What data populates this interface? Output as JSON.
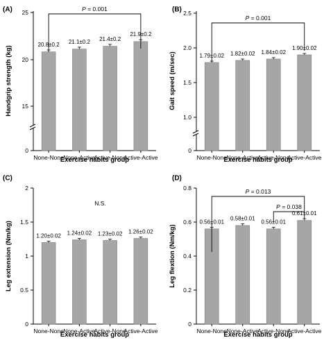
{
  "chart_data": [
    {
      "panel": "(A)",
      "type": "bar",
      "categories": [
        "None-None",
        "None-Active",
        "Active-None",
        "Active-Active"
      ],
      "values": [
        20.8,
        21.1,
        21.4,
        21.9
      ],
      "errors": [
        0.2,
        0.2,
        0.2,
        0.2
      ],
      "data_labels": [
        "20.8±0.2",
        "21.1±0.2",
        "21.4±0.2",
        "21.9±0.2"
      ],
      "xlabel": "Exercise habits group",
      "ylabel": "Handgrip strength (kg)",
      "yticks": [
        "0",
        "15",
        "20",
        "25"
      ],
      "ylim": [
        0,
        25
      ],
      "axis_break": true,
      "significance": [
        {
          "from": 0,
          "to": 3,
          "label": "P = 0.001"
        }
      ]
    },
    {
      "panel": "(B)",
      "type": "bar",
      "categories": [
        "None-None",
        "None-Active",
        "Active-None",
        "Active-Active"
      ],
      "values": [
        1.79,
        1.82,
        1.84,
        1.9
      ],
      "errors": [
        0.02,
        0.02,
        0.02,
        0.02
      ],
      "data_labels": [
        "1.79±0.02",
        "1.82±0.02",
        "1.84±0.02",
        "1.90±0.02"
      ],
      "xlabel": "Exercise habits group",
      "ylabel": "Gait speed (m/sec)",
      "yticks": [
        "0",
        "1.0",
        "1.5",
        "2.0",
        "2.5"
      ],
      "ylim": [
        0,
        2.5
      ],
      "axis_break": true,
      "significance": [
        {
          "from": 0,
          "to": 3,
          "label": "P = 0.001"
        }
      ]
    },
    {
      "panel": "(C)",
      "type": "bar",
      "categories": [
        "None-None",
        "None-Active",
        "Active-None",
        "Active-Active"
      ],
      "values": [
        1.2,
        1.24,
        1.23,
        1.26
      ],
      "errors": [
        0.02,
        0.02,
        0.02,
        0.02
      ],
      "data_labels": [
        "1.20±0.02",
        "1.24±0.02",
        "1.23±0.02",
        "1.26±0.02"
      ],
      "xlabel": "Exercise habits group",
      "ylabel": "Leg extension (Nm/kg)",
      "yticks": [
        "0",
        "0.5",
        "1",
        "1.5",
        "2"
      ],
      "ylim": [
        0,
        2
      ],
      "axis_break": false,
      "annotation": "N.S."
    },
    {
      "panel": "(D)",
      "type": "bar",
      "categories": [
        "None-None",
        "None-Active",
        "Active-None",
        "Active-Active"
      ],
      "values": [
        0.56,
        0.58,
        0.56,
        0.61
      ],
      "errors": [
        0.01,
        0.01,
        0.01,
        0.01
      ],
      "data_labels": [
        "0.56±0.01",
        "0.58±0.01",
        "0.56±0.01",
        "0.61±0.01"
      ],
      "xlabel": "Exercise habits group",
      "ylabel": "Leg flextion (Nm/kg)",
      "yticks": [
        "0",
        "0.2",
        "0.4",
        "0.6",
        "0.8"
      ],
      "ylim": [
        0,
        0.8
      ],
      "axis_break": false,
      "significance": [
        {
          "from": 0,
          "to": 3,
          "label": "P = 0.013"
        },
        {
          "from": 2,
          "to": 3,
          "label": "P = 0.038"
        }
      ]
    }
  ]
}
